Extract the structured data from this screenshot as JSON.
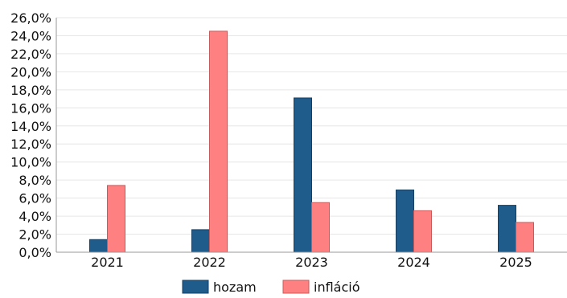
{
  "chart_data": {
    "type": "bar",
    "categories": [
      "2021",
      "2022",
      "2023",
      "2024",
      "2025"
    ],
    "series": [
      {
        "name": "hozam",
        "color": "#1f5c8b",
        "values": [
          1.4,
          2.5,
          17.1,
          6.9,
          5.2
        ]
      },
      {
        "name": "infláció",
        "color": "#ff8080",
        "values": [
          7.4,
          24.5,
          5.5,
          4.6,
          3.3
        ]
      }
    ],
    "y_ticks": [
      "0,0%",
      "2,0%",
      "4,0%",
      "6,0%",
      "8,0%",
      "10,0%",
      "12,0%",
      "14,0%",
      "16,0%",
      "18,0%",
      "20,0%",
      "22,0%",
      "24,0%",
      "26,0%"
    ],
    "ylim": [
      0,
      26
    ],
    "grid": true,
    "legend_position": "bottom-center",
    "title": "",
    "xlabel": "",
    "ylabel": ""
  }
}
